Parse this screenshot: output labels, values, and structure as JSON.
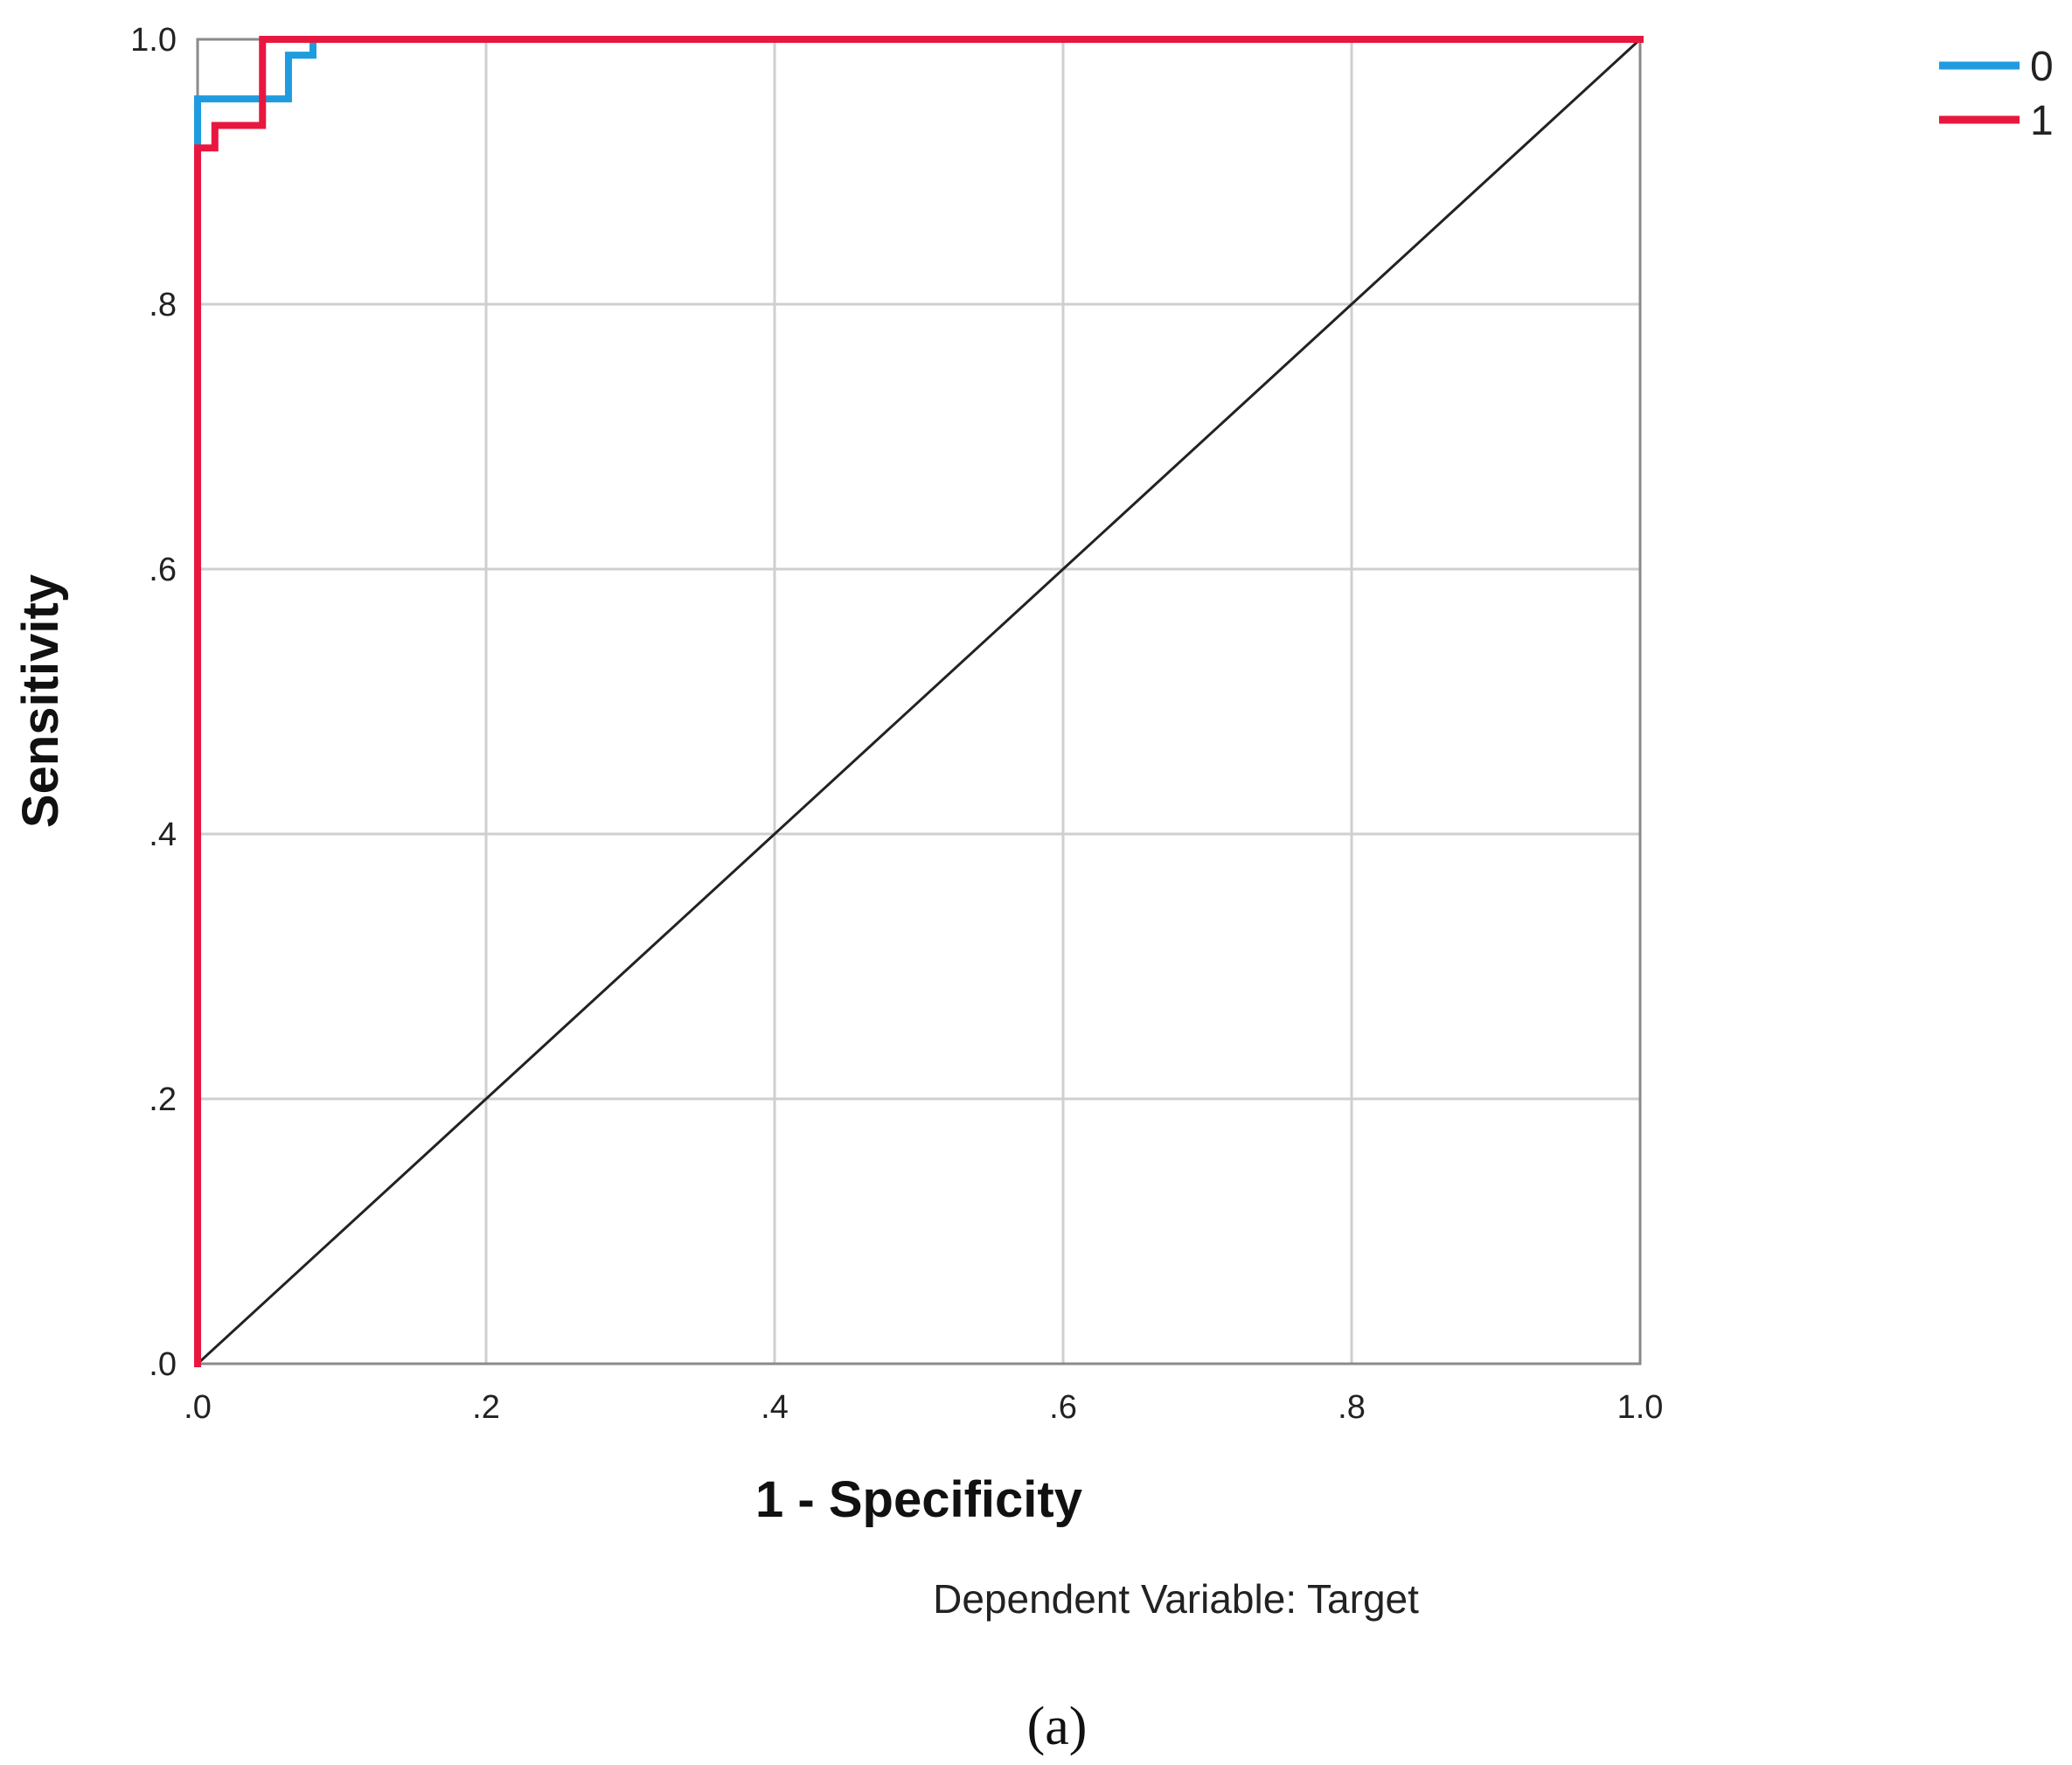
{
  "chart_data": {
    "type": "line",
    "xlabel": "1 - Specificity",
    "ylabel": "Sensitivity",
    "xlim": [
      0,
      1
    ],
    "ylim": [
      0,
      1
    ],
    "grid": true,
    "legend_position": "top-right",
    "x_ticks": [
      ".0",
      ".2",
      ".4",
      ".6",
      ".8",
      "1.0"
    ],
    "y_ticks": [
      ".0",
      ".2",
      ".4",
      ".6",
      ".8",
      "1.0"
    ],
    "footnote": "Dependent Variable: Target",
    "panel_label": "(a)",
    "reference_line": {
      "x": [
        0,
        1
      ],
      "y": [
        0,
        1
      ],
      "color": "#222222"
    },
    "series": [
      {
        "name": "0",
        "color": "#1f9ce0",
        "x": [
          0,
          0,
          0.063,
          0.063,
          0.08,
          0.08,
          1.0
        ],
        "y": [
          0,
          0.955,
          0.955,
          0.988,
          0.988,
          1.0,
          1.0
        ]
      },
      {
        "name": "1",
        "color": "#e8173f",
        "x": [
          0,
          0,
          0.012,
          0.012,
          0.045,
          0.045,
          1.0
        ],
        "y": [
          0,
          0.918,
          0.918,
          0.935,
          0.935,
          1.0,
          1.0
        ]
      }
    ]
  }
}
